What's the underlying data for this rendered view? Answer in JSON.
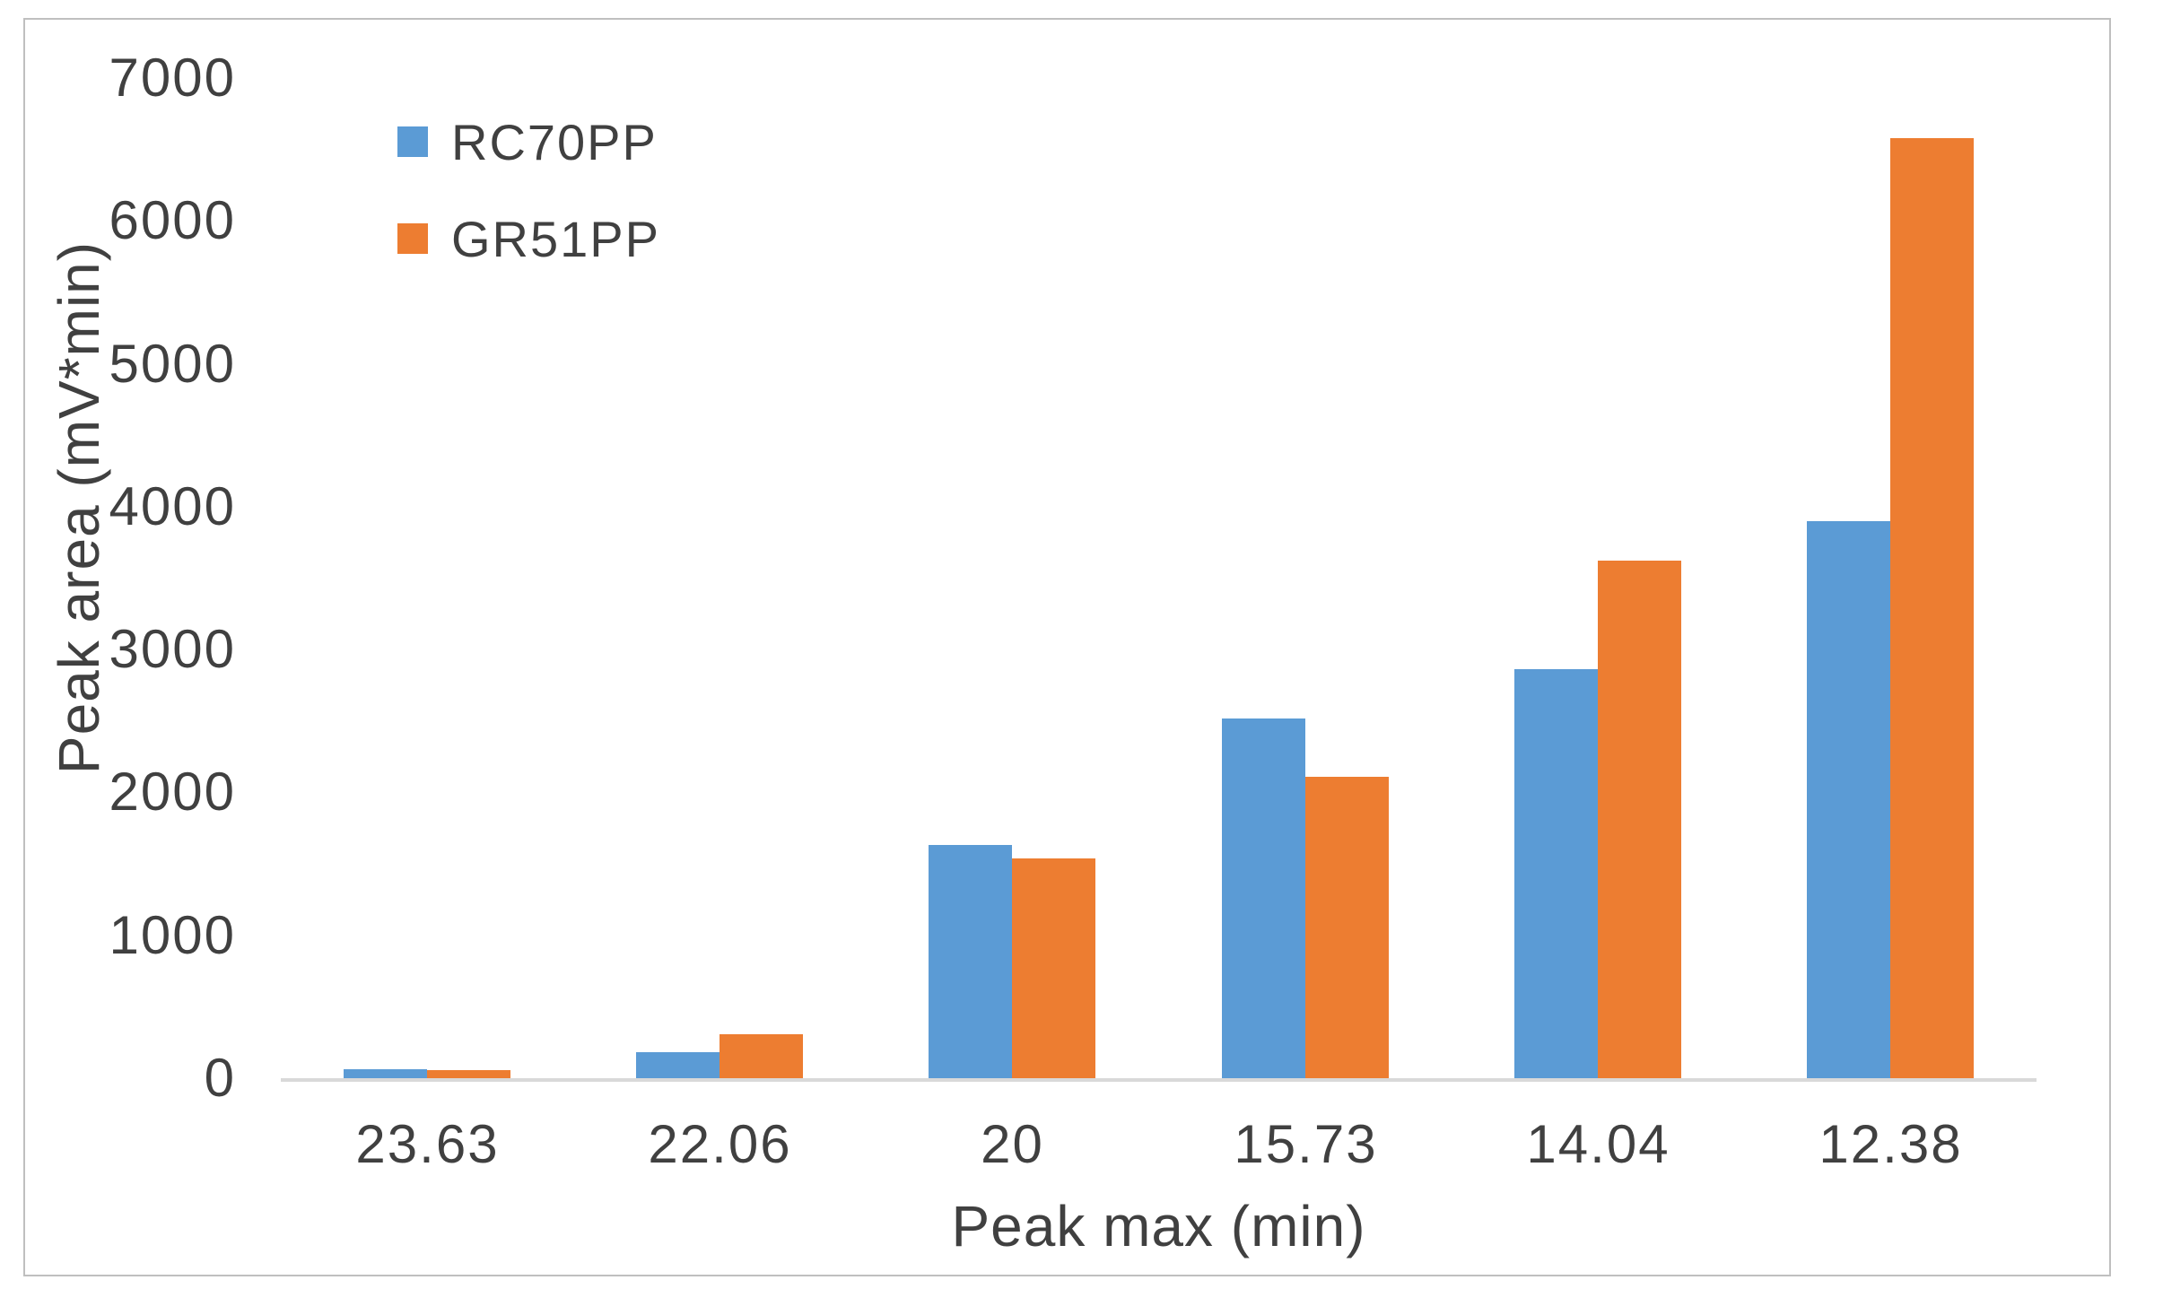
{
  "figure": {
    "background_color": "#ffffff",
    "border_color": "#bfbfbf"
  },
  "chart_data": {
    "type": "bar",
    "title": "",
    "xlabel": "Peak max (min)",
    "ylabel": "Peak area (mV*min)",
    "categories": [
      "23.63",
      "22.06",
      "20",
      "15.73",
      "14.04",
      "12.38"
    ],
    "series": [
      {
        "name": "RC70PP",
        "color": "#5b9bd5",
        "values": [
          60,
          185,
          1630,
          2520,
          2860,
          3900
        ]
      },
      {
        "name": "GR51PP",
        "color": "#ed7d31",
        "values": [
          55,
          310,
          1540,
          2110,
          3620,
          6580
        ]
      }
    ],
    "ylim": [
      0,
      7000
    ],
    "yticks": [
      "0",
      "1000",
      "2000",
      "3000",
      "4000",
      "5000",
      "6000",
      "7000"
    ],
    "grid": false,
    "legend_position": "upper-left-inside",
    "axis_line_color": "#d9d9d9",
    "text_color": "#404040"
  }
}
